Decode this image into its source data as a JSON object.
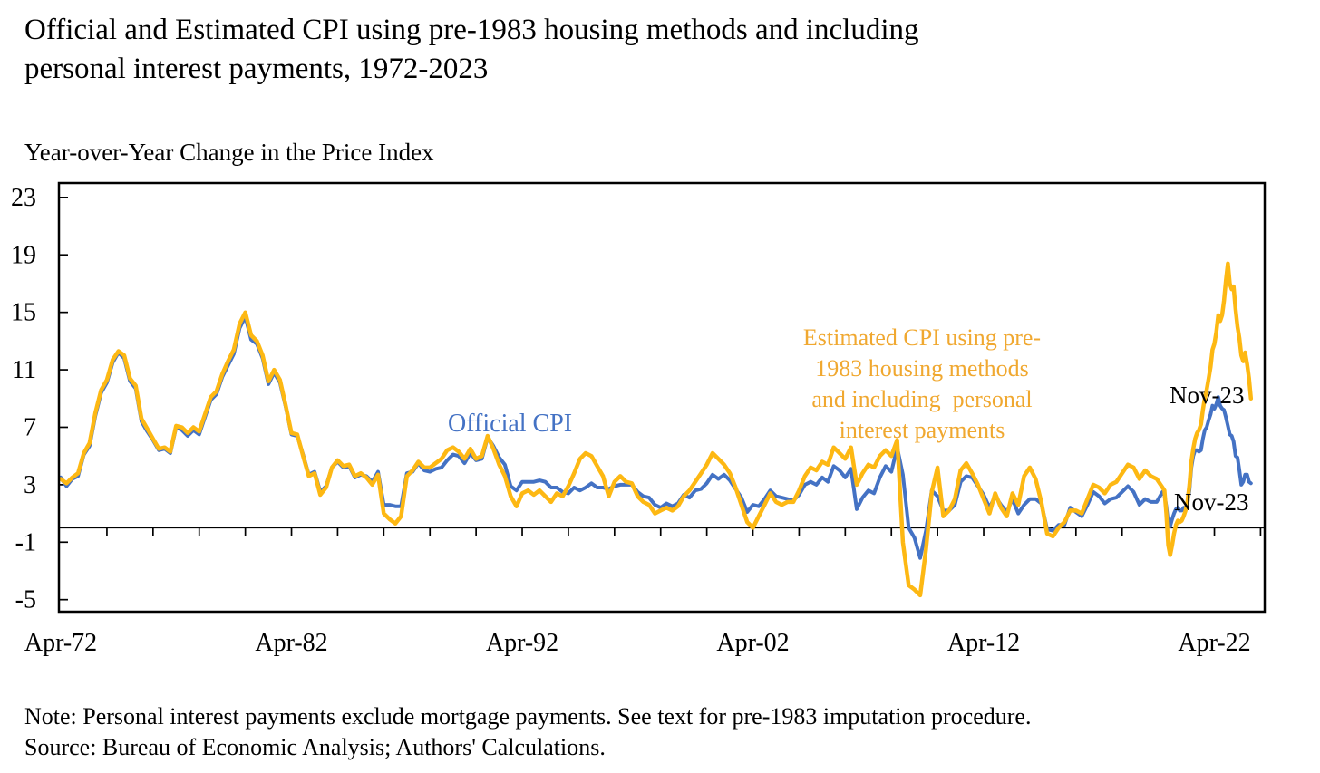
{
  "header": {
    "title_line1": "Official and Estimated CPI using pre-1983 housing methods and including",
    "title_line2": "personal interest payments, 1972-2023",
    "axis_title": "Year-over-Year Change in the Price Index"
  },
  "footnotes": {
    "note": "Note: Personal interest payments exclude mortgage payments. See text for pre-1983 imputation procedure.",
    "source": "Source: Bureau of Economic Analysis; Authors' Calculations."
  },
  "colors": {
    "official_line": "#4472C4",
    "estimated_line": "#FDB813",
    "estimated_text": "#F0A830",
    "axis": "#000000"
  },
  "chart_data": {
    "type": "line",
    "title": "Official and Estimated CPI using pre-1983 housing methods and including personal interest payments, 1972-2023",
    "xlabel": "",
    "ylabel": "Year-over-Year Change in the Price Index",
    "grid": false,
    "legend_position": "inline-annotations",
    "x_axis": {
      "unit": "decimal year (monthly/quarterly samples)",
      "range": [
        1972.17,
        2024.43
      ],
      "tick_labels": [
        "Apr-72",
        "Apr-82",
        "Apr-92",
        "Apr-02",
        "Apr-12",
        "Apr-22"
      ],
      "tick_label_positions": [
        1972.25,
        1982.25,
        1992.25,
        2002.25,
        2012.25,
        2022.25
      ],
      "minor_tick_start": 1974.25,
      "minor_tick_step_years": 2,
      "minor_tick_end": 2024.25
    },
    "y_axis": {
      "range": [
        -5.84,
        24.0
      ],
      "ticks": [
        23,
        19,
        15,
        11,
        7,
        3,
        -1,
        -5
      ]
    },
    "zero_line": true,
    "x": [
      1972.25,
      1972.5,
      1972.75,
      1973,
      1973.25,
      1973.5,
      1973.75,
      1974,
      1974.25,
      1974.5,
      1974.75,
      1975,
      1975.25,
      1975.5,
      1975.75,
      1976,
      1976.25,
      1976.5,
      1976.75,
      1977,
      1977.25,
      1977.5,
      1977.75,
      1978,
      1978.25,
      1978.5,
      1978.75,
      1979,
      1979.25,
      1979.5,
      1979.75,
      1980,
      1980.25,
      1980.5,
      1980.75,
      1981,
      1981.25,
      1981.5,
      1981.75,
      1982,
      1982.25,
      1982.5,
      1982.75,
      1983,
      1983.25,
      1983.5,
      1983.75,
      1984,
      1984.25,
      1984.5,
      1984.75,
      1985,
      1985.25,
      1985.5,
      1985.75,
      1986,
      1986.25,
      1986.5,
      1986.75,
      1987,
      1987.25,
      1987.5,
      1987.75,
      1988,
      1988.25,
      1988.5,
      1988.75,
      1989,
      1989.25,
      1989.5,
      1989.75,
      1990,
      1990.25,
      1990.5,
      1990.75,
      1991,
      1991.25,
      1991.5,
      1991.75,
      1992,
      1992.25,
      1992.5,
      1992.75,
      1993,
      1993.25,
      1993.5,
      1993.75,
      1994,
      1994.25,
      1994.5,
      1994.75,
      1995,
      1995.25,
      1995.5,
      1995.75,
      1996,
      1996.25,
      1996.5,
      1996.75,
      1997,
      1997.25,
      1997.5,
      1997.75,
      1998,
      1998.25,
      1998.5,
      1998.75,
      1999,
      1999.25,
      1999.5,
      1999.75,
      2000,
      2000.25,
      2000.5,
      2000.75,
      2001,
      2001.25,
      2001.5,
      2001.75,
      2002,
      2002.25,
      2002.5,
      2002.75,
      2003,
      2003.25,
      2003.5,
      2003.75,
      2004,
      2004.25,
      2004.5,
      2004.75,
      2005,
      2005.25,
      2005.5,
      2005.75,
      2006,
      2006.25,
      2006.5,
      2006.75,
      2007,
      2007.25,
      2007.5,
      2007.75,
      2008,
      2008.25,
      2008.5,
      2008.75,
      2009,
      2009.25,
      2009.5,
      2009.75,
      2010,
      2010.25,
      2010.5,
      2010.75,
      2011,
      2011.25,
      2011.5,
      2011.75,
      2012,
      2012.25,
      2012.5,
      2012.75,
      2013,
      2013.25,
      2013.5,
      2013.75,
      2014,
      2014.25,
      2014.5,
      2014.75,
      2015,
      2015.25,
      2015.5,
      2015.75,
      2016,
      2016.25,
      2016.5,
      2016.75,
      2017,
      2017.25,
      2017.5,
      2017.75,
      2018,
      2018.25,
      2018.5,
      2018.75,
      2019,
      2019.25,
      2019.5,
      2019.75,
      2020,
      2020.083,
      2020.167,
      2020.25,
      2020.333,
      2020.417,
      2020.5,
      2020.583,
      2020.667,
      2020.75,
      2020.833,
      2020.917,
      2021,
      2021.083,
      2021.167,
      2021.25,
      2021.333,
      2021.417,
      2021.5,
      2021.583,
      2021.667,
      2021.75,
      2021.833,
      2021.917,
      2022,
      2022.083,
      2022.167,
      2022.25,
      2022.333,
      2022.417,
      2022.5,
      2022.583,
      2022.667,
      2022.75,
      2022.833,
      2022.917,
      2023,
      2023.083,
      2023.167,
      2023.25,
      2023.333,
      2023.417,
      2023.5,
      2023.583,
      2023.667,
      2023.75,
      2023.833
    ],
    "series": [
      {
        "name": "Official CPI",
        "color": "#4472C4",
        "stroke_width": 4,
        "values": [
          3.5,
          2.9,
          3.4,
          3.6,
          5.1,
          5.7,
          7.8,
          9.4,
          10.1,
          11.5,
          12.2,
          11.8,
          10.2,
          9.7,
          7.4,
          6.7,
          6.1,
          5.4,
          5.5,
          5.2,
          7.0,
          6.8,
          6.4,
          6.8,
          6.5,
          7.7,
          8.9,
          9.3,
          10.5,
          11.3,
          12.1,
          13.9,
          14.7,
          13.1,
          12.8,
          11.8,
          10.0,
          10.8,
          10.1,
          8.4,
          6.5,
          6.4,
          5.1,
          3.7,
          3.9,
          2.5,
          2.9,
          4.2,
          4.6,
          4.2,
          4.3,
          3.5,
          3.7,
          3.6,
          3.2,
          3.9,
          1.6,
          1.6,
          1.5,
          1.5,
          3.8,
          3.9,
          4.5,
          4.0,
          3.9,
          4.1,
          4.2,
          4.7,
          5.1,
          5.0,
          4.5,
          5.2,
          4.7,
          4.8,
          6.3,
          5.7,
          4.9,
          4.4,
          2.9,
          2.6,
          3.2,
          3.2,
          3.2,
          3.3,
          3.2,
          2.8,
          2.8,
          2.5,
          2.4,
          2.8,
          2.6,
          2.8,
          3.1,
          2.8,
          2.8,
          2.7,
          2.9,
          3.0,
          3.0,
          3.0,
          2.5,
          2.2,
          2.1,
          1.6,
          1.4,
          1.7,
          1.5,
          1.7,
          2.3,
          2.1,
          2.6,
          2.7,
          3.1,
          3.7,
          3.4,
          3.7,
          3.3,
          2.7,
          2.1,
          1.1,
          1.6,
          1.5,
          2.0,
          2.6,
          2.2,
          2.1,
          2.0,
          1.9,
          2.3,
          3.0,
          3.2,
          3.0,
          3.5,
          3.2,
          4.3,
          4.0,
          3.5,
          4.1,
          1.3,
          2.1,
          2.6,
          2.4,
          3.5,
          4.3,
          3.9,
          5.6,
          3.7,
          0.0,
          -0.7,
          -2.1,
          -0.2,
          2.6,
          2.2,
          1.2,
          1.2,
          1.6,
          3.2,
          3.6,
          3.5,
          2.9,
          2.3,
          1.4,
          2.2,
          1.6,
          1.1,
          2.0,
          1.0,
          1.6,
          2.0,
          2.0,
          1.7,
          -0.1,
          -0.2,
          0.2,
          0.2,
          1.4,
          1.1,
          0.8,
          1.6,
          2.5,
          2.2,
          1.7,
          2.0,
          2.1,
          2.5,
          2.9,
          2.5,
          1.6,
          2.0,
          1.8,
          1.8,
          2.5,
          2.3,
          1.5,
          0.3,
          0.1,
          0.6,
          1.0,
          1.3,
          1.4,
          1.2,
          1.2,
          1.4,
          1.4,
          1.7,
          2.6,
          4.2,
          5.0,
          5.4,
          5.4,
          5.3,
          5.4,
          6.2,
          6.8,
          7.0,
          7.5,
          7.9,
          8.5,
          8.3,
          8.6,
          9.1,
          8.5,
          8.3,
          8.2,
          7.7,
          7.1,
          6.5,
          6.4,
          6.0,
          5.0,
          4.9,
          4.0,
          3.0,
          3.2,
          3.7,
          3.7,
          3.2,
          3.1
        ]
      },
      {
        "name": "Estimated CPI using pre-1983 housing methods and including personal interest payments",
        "color": "#FDB813",
        "stroke_width": 4.5,
        "values": [
          3.4,
          3.1,
          3.5,
          3.8,
          5.2,
          5.9,
          8.0,
          9.6,
          10.3,
          11.7,
          12.3,
          12.0,
          10.4,
          9.9,
          7.6,
          6.9,
          6.2,
          5.5,
          5.6,
          5.3,
          7.1,
          7.0,
          6.6,
          7.0,
          6.7,
          7.9,
          9.1,
          9.5,
          10.7,
          11.6,
          12.4,
          14.2,
          15.0,
          13.4,
          13.0,
          12.0,
          10.2,
          11.0,
          10.3,
          8.5,
          6.6,
          6.5,
          5.0,
          3.6,
          3.8,
          2.3,
          2.8,
          4.2,
          4.7,
          4.3,
          4.4,
          3.6,
          3.8,
          3.5,
          3.0,
          3.7,
          1.0,
          0.6,
          0.3,
          0.8,
          3.6,
          4.0,
          4.6,
          4.2,
          4.2,
          4.5,
          4.8,
          5.4,
          5.6,
          5.3,
          4.8,
          5.5,
          4.8,
          5.0,
          6.4,
          5.5,
          4.4,
          3.6,
          2.2,
          1.5,
          2.4,
          2.6,
          2.3,
          2.6,
          2.2,
          1.8,
          2.4,
          2.2,
          2.9,
          3.8,
          4.8,
          5.2,
          5.0,
          4.3,
          3.6,
          2.2,
          3.2,
          3.6,
          3.2,
          3.1,
          2.2,
          1.8,
          1.6,
          1.0,
          1.2,
          1.4,
          1.2,
          1.5,
          2.2,
          2.6,
          3.2,
          3.8,
          4.4,
          5.2,
          4.8,
          4.4,
          3.8,
          2.8,
          1.6,
          0.4,
          0.0,
          0.8,
          1.6,
          2.4,
          1.8,
          1.6,
          1.8,
          1.8,
          2.6,
          3.6,
          4.2,
          4.0,
          4.6,
          4.4,
          5.6,
          5.2,
          4.8,
          5.6,
          3.0,
          3.8,
          4.4,
          4.2,
          5.0,
          5.4,
          5.0,
          6.1,
          -1.0,
          -4.0,
          -4.3,
          -4.7,
          -1.5,
          2.5,
          4.2,
          0.8,
          1.2,
          2.0,
          4.0,
          4.5,
          3.8,
          3.0,
          2.0,
          1.0,
          2.4,
          1.4,
          0.8,
          2.4,
          1.6,
          3.6,
          4.2,
          3.4,
          1.8,
          -0.4,
          -0.6,
          0.0,
          0.4,
          1.2,
          1.2,
          1.0,
          2.0,
          3.0,
          2.8,
          2.4,
          3.0,
          3.2,
          3.8,
          4.4,
          4.2,
          3.4,
          4.0,
          3.6,
          3.4,
          2.8,
          2.6,
          1.0,
          -1.2,
          -1.9,
          -1.2,
          -0.4,
          0.2,
          0.5,
          0.4,
          0.5,
          0.8,
          1.2,
          1.8,
          3.0,
          4.6,
          5.5,
          6.2,
          6.6,
          6.8,
          7.2,
          8.2,
          9.0,
          9.6,
          10.4,
          11.2,
          12.4,
          12.8,
          13.6,
          14.8,
          14.4,
          14.8,
          15.8,
          17.2,
          18.4,
          17.0,
          16.6,
          16.8,
          15.2,
          14.0,
          13.2,
          12.0,
          11.6,
          12.2,
          11.4,
          10.4,
          9.0
        ]
      }
    ],
    "annotations": {
      "official": {
        "text": "Official CPI",
        "color": "#4472C4",
        "near_x": 1990.5,
        "near_y": 7.3
      },
      "estimated": {
        "color": "#F0A830",
        "lines": [
          "Estimated CPI using pre-",
          "1983 housing methods",
          "and including  personal",
          "interest payments"
        ]
      },
      "endpoint_top": {
        "text": "Nov-23",
        "series": "Estimated CPI",
        "value": 9.0
      },
      "endpoint_bottom": {
        "text": "Nov-23",
        "series": "Official CPI",
        "value": 3.1
      }
    }
  }
}
